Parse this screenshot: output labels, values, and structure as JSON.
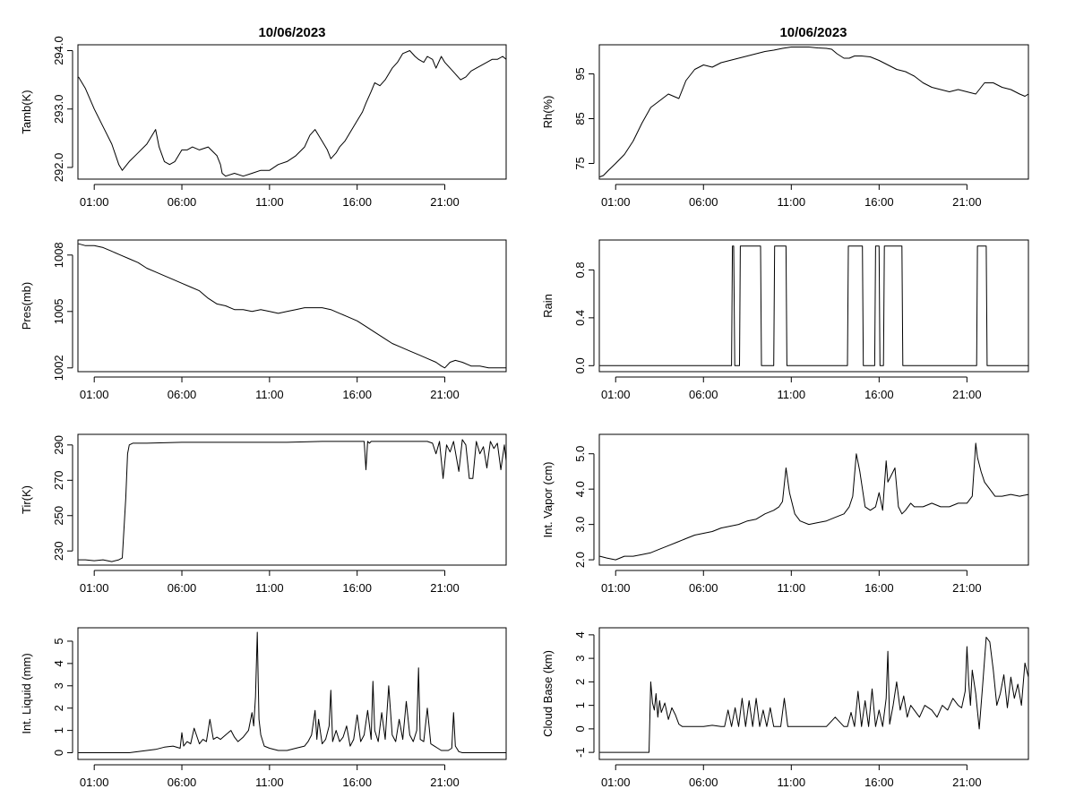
{
  "figure": {
    "titles": [
      "10/06/2023",
      "10/06/2023"
    ]
  },
  "chart_data": [
    {
      "type": "line",
      "id": "tamb",
      "ylabel": "Tamb(K)",
      "title": "10/06/2023",
      "xlim": [
        0.07,
        24.5
      ],
      "ylim": [
        291.8,
        294.1
      ],
      "xticks": [
        1,
        6,
        11,
        16,
        21
      ],
      "xticklabels": [
        "01:00",
        "06:00",
        "11:00",
        "16:00",
        "21:00"
      ],
      "yticks": [
        292,
        293,
        294
      ],
      "yticklabels": [
        "292.0",
        "293.0",
        "294.0"
      ],
      "x": [
        0.1,
        0.5,
        1.0,
        1.5,
        2.0,
        2.4,
        2.6,
        3.0,
        3.5,
        4.0,
        4.3,
        4.5,
        4.7,
        5.0,
        5.3,
        5.6,
        6.0,
        6.3,
        6.6,
        7.0,
        7.5,
        8.0,
        8.2,
        8.3,
        8.5,
        9.0,
        9.5,
        10.0,
        10.5,
        11.0,
        11.5,
        12.0,
        12.5,
        13.0,
        13.3,
        13.6,
        14.0,
        14.3,
        14.5,
        14.8,
        15.0,
        15.3,
        15.6,
        16.0,
        16.3,
        16.5,
        16.8,
        17.0,
        17.3,
        17.6,
        18.0,
        18.3,
        18.6,
        19.0,
        19.3,
        19.5,
        19.8,
        20.0,
        20.3,
        20.5,
        20.8,
        21.0,
        21.3,
        21.6,
        21.9,
        22.2,
        22.5,
        22.8,
        23.1,
        23.4,
        23.7,
        24.0,
        24.3,
        24.5
      ],
      "y": [
        293.55,
        293.35,
        293.0,
        292.7,
        292.4,
        292.05,
        291.95,
        292.1,
        292.25,
        292.4,
        292.55,
        292.65,
        292.35,
        292.1,
        292.05,
        292.1,
        292.3,
        292.3,
        292.35,
        292.3,
        292.35,
        292.2,
        292.05,
        291.9,
        291.85,
        291.9,
        291.85,
        291.9,
        291.95,
        291.95,
        292.05,
        292.1,
        292.2,
        292.35,
        292.55,
        292.65,
        292.45,
        292.3,
        292.15,
        292.25,
        292.35,
        292.45,
        292.6,
        292.8,
        292.95,
        293.1,
        293.3,
        293.45,
        293.4,
        293.5,
        293.7,
        293.8,
        293.95,
        294.0,
        293.9,
        293.85,
        293.8,
        293.9,
        293.85,
        293.7,
        293.9,
        293.8,
        293.7,
        293.6,
        293.5,
        293.55,
        293.65,
        293.7,
        293.75,
        293.8,
        293.85,
        293.85,
        293.9,
        293.85
      ]
    },
    {
      "type": "line",
      "id": "rh",
      "ylabel": "Rh(%)",
      "title": "10/06/2023",
      "xlim": [
        0.07,
        24.5
      ],
      "ylim": [
        71.5,
        101.5
      ],
      "xticks": [
        1,
        6,
        11,
        16,
        21
      ],
      "xticklabels": [
        "01:00",
        "06:00",
        "11:00",
        "16:00",
        "21:00"
      ],
      "yticks": [
        75,
        85,
        95
      ],
      "yticklabels": [
        "75",
        "85",
        "95"
      ],
      "x": [
        0.1,
        0.3,
        0.6,
        1.0,
        1.5,
        2.0,
        2.5,
        3.0,
        3.5,
        4.0,
        4.3,
        4.6,
        5.0,
        5.5,
        6.0,
        6.5,
        7.0,
        7.5,
        8.0,
        8.5,
        9.0,
        9.5,
        10.0,
        10.5,
        11.0,
        11.5,
        12.0,
        12.5,
        13.0,
        13.3,
        13.6,
        14.0,
        14.3,
        14.6,
        15.0,
        15.5,
        16.0,
        16.5,
        17.0,
        17.5,
        18.0,
        18.5,
        19.0,
        19.5,
        20.0,
        20.5,
        21.0,
        21.5,
        22.0,
        22.5,
        23.0,
        23.5,
        24.0,
        24.3,
        24.5
      ],
      "y": [
        72.0,
        72.3,
        73.5,
        75.0,
        77.0,
        80.0,
        84.0,
        87.5,
        89.0,
        90.5,
        90.0,
        89.5,
        93.5,
        96.0,
        97.0,
        96.5,
        97.5,
        98.0,
        98.5,
        99.0,
        99.5,
        100.0,
        100.3,
        100.7,
        101.0,
        101.0,
        101.0,
        100.8,
        100.7,
        100.5,
        99.5,
        98.5,
        98.5,
        99.0,
        99.0,
        98.8,
        98.0,
        97.0,
        96.0,
        95.5,
        94.5,
        93.0,
        92.0,
        91.5,
        91.0,
        91.5,
        91.0,
        90.5,
        93.0,
        93.0,
        92.0,
        91.5,
        90.5,
        90.0,
        90.5
      ]
    },
    {
      "type": "line",
      "id": "pres",
      "ylabel": "Pres(mb)",
      "title": "",
      "xlim": [
        0.07,
        24.5
      ],
      "ylim": [
        1001.8,
        1008.8
      ],
      "xticks": [
        1,
        6,
        11,
        16,
        21
      ],
      "xticklabels": [
        "01:00",
        "06:00",
        "11:00",
        "16:00",
        "21:00"
      ],
      "yticks": [
        1002,
        1005,
        1008
      ],
      "yticklabels": [
        "1002",
        "1005",
        "1008"
      ],
      "x": [
        0.1,
        0.5,
        1.0,
        1.5,
        2.0,
        2.5,
        3.0,
        3.5,
        4.0,
        4.5,
        5.0,
        5.5,
        6.0,
        6.5,
        7.0,
        7.5,
        8.0,
        8.5,
        9.0,
        9.5,
        10.0,
        10.5,
        11.0,
        11.5,
        12.0,
        12.5,
        13.0,
        13.5,
        14.0,
        14.5,
        15.0,
        15.5,
        16.0,
        16.5,
        17.0,
        17.5,
        18.0,
        18.5,
        19.0,
        19.5,
        20.0,
        20.5,
        20.8,
        21.0,
        21.3,
        21.6,
        22.0,
        22.5,
        23.0,
        23.5,
        24.0,
        24.5
      ],
      "y": [
        1008.6,
        1008.5,
        1008.5,
        1008.4,
        1008.2,
        1008.0,
        1007.8,
        1007.6,
        1007.3,
        1007.1,
        1006.9,
        1006.7,
        1006.5,
        1006.3,
        1006.1,
        1005.7,
        1005.4,
        1005.3,
        1005.1,
        1005.1,
        1005.0,
        1005.1,
        1005.0,
        1004.9,
        1005.0,
        1005.1,
        1005.2,
        1005.2,
        1005.2,
        1005.1,
        1004.9,
        1004.7,
        1004.5,
        1004.2,
        1003.9,
        1003.6,
        1003.3,
        1003.1,
        1002.9,
        1002.7,
        1002.5,
        1002.3,
        1002.1,
        1002.0,
        1002.3,
        1002.4,
        1002.3,
        1002.1,
        1002.1,
        1002.0,
        1002.0,
        1002.0
      ]
    },
    {
      "type": "line",
      "id": "rain",
      "ylabel": "Rain",
      "title": "",
      "xlim": [
        0.07,
        24.5
      ],
      "ylim": [
        -0.05,
        1.05
      ],
      "xticks": [
        1,
        6,
        11,
        16,
        21
      ],
      "xticklabels": [
        "01:00",
        "06:00",
        "11:00",
        "16:00",
        "21:00"
      ],
      "yticks": [
        0.0,
        0.4,
        0.8
      ],
      "yticklabels": [
        "0.0",
        "0.4",
        "0.8"
      ],
      "x": [
        0.1,
        7.6,
        7.65,
        7.72,
        7.78,
        8.05,
        8.1,
        9.25,
        9.3,
        10.0,
        10.05,
        10.7,
        10.75,
        14.2,
        14.25,
        15.05,
        15.1,
        15.75,
        15.8,
        16.0,
        16.05,
        16.25,
        16.3,
        17.3,
        17.35,
        21.55,
        21.6,
        22.1,
        22.15,
        24.5
      ],
      "y": [
        0,
        0,
        1,
        1,
        0,
        0,
        1,
        1,
        0,
        0,
        1,
        1,
        0,
        0,
        1,
        1,
        0,
        0,
        1,
        1,
        0,
        0,
        1,
        1,
        0,
        0,
        1,
        1,
        0,
        0
      ]
    },
    {
      "type": "line",
      "id": "tir",
      "ylabel": "Tir(K)",
      "title": "",
      "xlim": [
        0.07,
        24.5
      ],
      "ylim": [
        222.0,
        296.0
      ],
      "xticks": [
        1,
        6,
        11,
        16,
        21
      ],
      "xticklabels": [
        "01:00",
        "06:00",
        "11:00",
        "16:00",
        "21:00"
      ],
      "yticks": [
        230,
        250,
        270,
        290
      ],
      "yticklabels": [
        "230",
        "250",
        "270",
        "290"
      ],
      "x": [
        0.1,
        0.5,
        1.0,
        1.5,
        2.0,
        2.4,
        2.6,
        2.8,
        2.9,
        3.0,
        3.2,
        4.0,
        6.0,
        8.0,
        10.0,
        12.0,
        14.0,
        16.0,
        16.4,
        16.5,
        16.6,
        16.7,
        16.8,
        17.5,
        19.0,
        20.0,
        20.3,
        20.5,
        20.7,
        20.9,
        21.1,
        21.3,
        21.5,
        21.8,
        22.0,
        22.2,
        22.4,
        22.6,
        22.8,
        23.0,
        23.2,
        23.4,
        23.6,
        23.8,
        24.0,
        24.2,
        24.4,
        24.5
      ],
      "y": [
        225.0,
        225.0,
        224.5,
        225.0,
        224.0,
        225.0,
        226.0,
        260.0,
        285.0,
        290.0,
        291.0,
        291.0,
        291.5,
        291.5,
        291.5,
        291.5,
        292.0,
        292.0,
        292.0,
        276.0,
        292.0,
        291.0,
        292.0,
        292.0,
        292.0,
        292.0,
        291.0,
        285.0,
        292.0,
        271.0,
        290.0,
        286.0,
        292.0,
        275.0,
        293.0,
        290.0,
        271.0,
        271.0,
        292.0,
        285.0,
        289.0,
        277.0,
        292.0,
        288.0,
        291.0,
        276.0,
        290.0,
        281.0
      ]
    },
    {
      "type": "line",
      "id": "vapor",
      "ylabel": "Int. Vapor (cm)",
      "title": "",
      "xlim": [
        0.07,
        24.5
      ],
      "ylim": [
        1.85,
        5.55
      ],
      "xticks": [
        1,
        6,
        11,
        16,
        21
      ],
      "xticklabels": [
        "01:00",
        "06:00",
        "11:00",
        "16:00",
        "21:00"
      ],
      "yticks": [
        2.0,
        3.0,
        4.0,
        5.0
      ],
      "yticklabels": [
        "2.0",
        "3.0",
        "4.0",
        "5.0"
      ],
      "x": [
        0.1,
        0.5,
        1.0,
        1.5,
        2.0,
        2.5,
        3.0,
        3.5,
        4.0,
        4.5,
        5.0,
        5.5,
        6.0,
        6.5,
        7.0,
        7.5,
        8.0,
        8.5,
        9.0,
        9.5,
        10.0,
        10.3,
        10.5,
        10.7,
        10.9,
        11.2,
        11.5,
        12.0,
        12.5,
        13.0,
        13.5,
        14.0,
        14.3,
        14.5,
        14.7,
        14.9,
        15.2,
        15.5,
        15.8,
        16.0,
        16.2,
        16.4,
        16.5,
        16.7,
        16.9,
        17.1,
        17.3,
        17.5,
        17.8,
        18.0,
        18.5,
        19.0,
        19.5,
        20.0,
        20.5,
        21.0,
        21.3,
        21.5,
        21.6,
        21.8,
        22.0,
        22.3,
        22.6,
        23.0,
        23.5,
        24.0,
        24.5
      ],
      "y": [
        2.1,
        2.05,
        2.0,
        2.1,
        2.1,
        2.15,
        2.2,
        2.3,
        2.4,
        2.5,
        2.6,
        2.7,
        2.75,
        2.8,
        2.9,
        2.95,
        3.0,
        3.1,
        3.15,
        3.3,
        3.4,
        3.5,
        3.65,
        4.6,
        3.9,
        3.3,
        3.1,
        3.0,
        3.05,
        3.1,
        3.2,
        3.3,
        3.5,
        3.8,
        5.0,
        4.5,
        3.5,
        3.4,
        3.5,
        3.9,
        3.4,
        4.8,
        4.2,
        4.4,
        4.6,
        3.5,
        3.3,
        3.4,
        3.6,
        3.5,
        3.5,
        3.6,
        3.5,
        3.5,
        3.6,
        3.6,
        3.8,
        5.3,
        4.9,
        4.5,
        4.2,
        4.0,
        3.8,
        3.8,
        3.85,
        3.8,
        3.85
      ]
    },
    {
      "type": "line",
      "id": "liquid",
      "ylabel": "Int. Liquid (mm)",
      "title": "",
      "xlim": [
        0.07,
        24.5
      ],
      "ylim": [
        -0.3,
        5.6
      ],
      "xticks": [
        1,
        6,
        11,
        16,
        21
      ],
      "xticklabels": [
        "01:00",
        "06:00",
        "11:00",
        "16:00",
        "21:00"
      ],
      "yticks": [
        0,
        1,
        2,
        3,
        4,
        5
      ],
      "yticklabels": [
        "0",
        "1",
        "2",
        "3",
        "4",
        "5"
      ],
      "x": [
        0.1,
        1.0,
        2.0,
        3.0,
        3.5,
        4.0,
        4.5,
        5.0,
        5.5,
        5.9,
        6.0,
        6.1,
        6.3,
        6.5,
        6.7,
        7.0,
        7.2,
        7.4,
        7.6,
        7.8,
        8.0,
        8.2,
        8.5,
        8.8,
        9.0,
        9.2,
        9.5,
        9.8,
        10.0,
        10.1,
        10.2,
        10.3,
        10.35,
        10.4,
        10.5,
        10.7,
        11.0,
        11.5,
        12.0,
        12.5,
        13.0,
        13.2,
        13.4,
        13.6,
        13.7,
        13.8,
        14.0,
        14.2,
        14.4,
        14.5,
        14.6,
        14.8,
        15.0,
        15.2,
        15.4,
        15.6,
        15.8,
        16.0,
        16.2,
        16.4,
        16.6,
        16.8,
        16.9,
        17.0,
        17.2,
        17.4,
        17.6,
        17.8,
        18.0,
        18.2,
        18.4,
        18.6,
        18.8,
        19.0,
        19.2,
        19.4,
        19.5,
        19.6,
        19.8,
        20.0,
        20.2,
        20.4,
        20.6,
        20.8,
        21.0,
        21.2,
        21.4,
        21.5,
        21.6,
        21.8,
        22.0,
        23.0,
        24.0,
        24.5
      ],
      "y": [
        0,
        0,
        0,
        0,
        0.05,
        0.1,
        0.15,
        0.25,
        0.3,
        0.2,
        0.9,
        0.3,
        0.5,
        0.4,
        1.1,
        0.4,
        0.6,
        0.5,
        1.5,
        0.6,
        0.7,
        0.6,
        0.8,
        1.0,
        0.7,
        0.5,
        0.7,
        1.0,
        1.8,
        1.2,
        2.5,
        5.4,
        3.5,
        1.5,
        0.8,
        0.3,
        0.2,
        0.1,
        0.1,
        0.2,
        0.3,
        0.5,
        0.8,
        1.9,
        0.6,
        1.5,
        0.4,
        0.6,
        1.2,
        2.8,
        0.5,
        1.0,
        0.5,
        0.7,
        1.2,
        0.3,
        0.6,
        1.7,
        0.5,
        0.8,
        1.9,
        0.6,
        3.2,
        1.0,
        0.5,
        1.8,
        0.6,
        3.0,
        0.8,
        0.5,
        1.5,
        0.6,
        2.3,
        0.8,
        0.5,
        1.0,
        3.8,
        0.6,
        0.5,
        2.0,
        0.4,
        0.3,
        0.2,
        0.1,
        0.1,
        0.1,
        0.2,
        1.8,
        0.3,
        0.05,
        0,
        0,
        0,
        0
      ]
    },
    {
      "type": "line",
      "id": "cloudbase",
      "ylabel": "Cloud Base (km)",
      "title": "",
      "xlim": [
        0.07,
        24.5
      ],
      "ylim": [
        -1.3,
        4.3
      ],
      "xticks": [
        1,
        6,
        11,
        16,
        21
      ],
      "xticklabels": [
        "01:00",
        "06:00",
        "11:00",
        "16:00",
        "21:00"
      ],
      "yticks": [
        -1,
        0,
        1,
        2,
        3,
        4
      ],
      "yticklabels": [
        "-1",
        "0",
        "1",
        "2",
        "3",
        "4"
      ],
      "x": [
        0.1,
        1.0,
        2.0,
        2.9,
        3.0,
        3.1,
        3.2,
        3.3,
        3.4,
        3.5,
        3.6,
        3.8,
        4.0,
        4.2,
        4.4,
        4.6,
        4.8,
        5.0,
        5.5,
        6.0,
        6.5,
        7.0,
        7.2,
        7.4,
        7.6,
        7.8,
        8.0,
        8.2,
        8.4,
        8.6,
        8.8,
        9.0,
        9.2,
        9.4,
        9.6,
        9.8,
        10.0,
        10.2,
        10.4,
        10.6,
        10.8,
        11.0,
        11.5,
        12.0,
        12.5,
        13.0,
        13.5,
        14.0,
        14.2,
        14.4,
        14.6,
        14.8,
        15.0,
        15.2,
        15.4,
        15.6,
        15.8,
        16.0,
        16.2,
        16.4,
        16.5,
        16.6,
        16.8,
        17.0,
        17.2,
        17.4,
        17.6,
        17.8,
        18.0,
        18.3,
        18.6,
        19.0,
        19.3,
        19.6,
        19.9,
        20.2,
        20.5,
        20.7,
        20.9,
        21.0,
        21.1,
        21.2,
        21.3,
        21.5,
        21.7,
        21.9,
        22.1,
        22.3,
        22.5,
        22.7,
        22.9,
        23.1,
        23.3,
        23.5,
        23.7,
        23.9,
        24.1,
        24.3,
        24.5
      ],
      "y": [
        -1,
        -1,
        -1,
        -1,
        2.0,
        1.1,
        0.8,
        1.5,
        0.5,
        1.2,
        0.7,
        1.1,
        0.4,
        0.9,
        0.6,
        0.2,
        0.1,
        0.1,
        0.1,
        0.1,
        0.15,
        0.1,
        0.1,
        0.8,
        0.1,
        0.9,
        0.1,
        1.3,
        0.1,
        1.2,
        0.1,
        1.3,
        0.1,
        0.8,
        0.1,
        0.9,
        0.1,
        0.1,
        0.1,
        1.3,
        0.1,
        0.1,
        0.1,
        0.1,
        0.1,
        0.1,
        0.5,
        0.1,
        0.1,
        0.7,
        0.1,
        1.6,
        0.1,
        1.2,
        0.1,
        1.7,
        0.1,
        0.8,
        0.1,
        1.3,
        3.3,
        0.2,
        1.0,
        2.0,
        0.8,
        1.4,
        0.5,
        1.0,
        0.8,
        0.5,
        1.0,
        0.8,
        0.5,
        1.0,
        0.8,
        1.3,
        1.0,
        0.9,
        1.6,
        3.5,
        2.0,
        1.0,
        2.5,
        1.5,
        0.0,
        1.9,
        3.9,
        3.7,
        2.5,
        1.0,
        1.5,
        2.3,
        0.9,
        2.2,
        1.3,
        1.9,
        1.0,
        2.8,
        2.2
      ]
    }
  ]
}
